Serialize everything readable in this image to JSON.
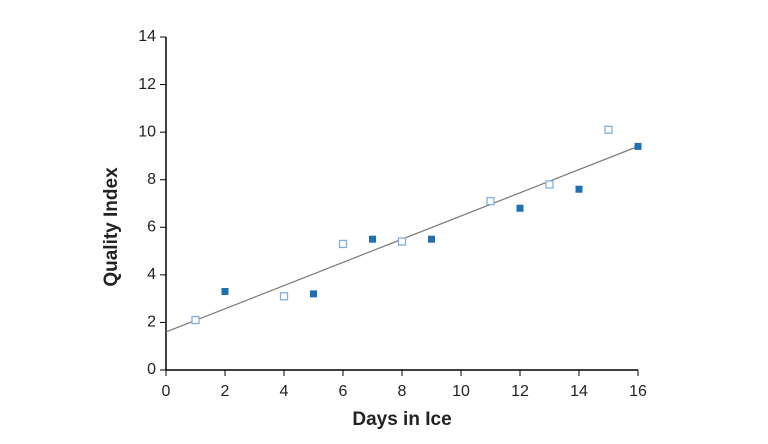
{
  "chart_data": {
    "type": "scatter",
    "xlabel": "Days in Ice",
    "ylabel": "Quality Index",
    "xlim": [
      0,
      16
    ],
    "xticks": [
      0,
      2,
      4,
      6,
      8,
      10,
      12,
      14,
      16
    ],
    "ylim": [
      0,
      14
    ],
    "yticks": [
      0,
      2,
      4,
      6,
      8,
      10,
      12,
      14
    ],
    "series": [
      {
        "color": "#1f6fb2",
        "marker": "filled-square",
        "x": [
          2,
          5,
          7,
          9,
          12,
          14,
          16
        ],
        "values": [
          3.3,
          3.2,
          5.5,
          5.5,
          6.8,
          7.6,
          9.4
        ]
      },
      {
        "color": "#7fb0dc",
        "marker": "hollow-square",
        "x": [
          1,
          4,
          6,
          8,
          11,
          13,
          15
        ],
        "values": [
          2.1,
          3.1,
          5.3,
          5.4,
          7.1,
          7.8,
          10.1
        ]
      }
    ],
    "trendline": {
      "color": "#777777",
      "x": [
        0,
        16
      ],
      "values": [
        1.6,
        9.4
      ]
    }
  }
}
